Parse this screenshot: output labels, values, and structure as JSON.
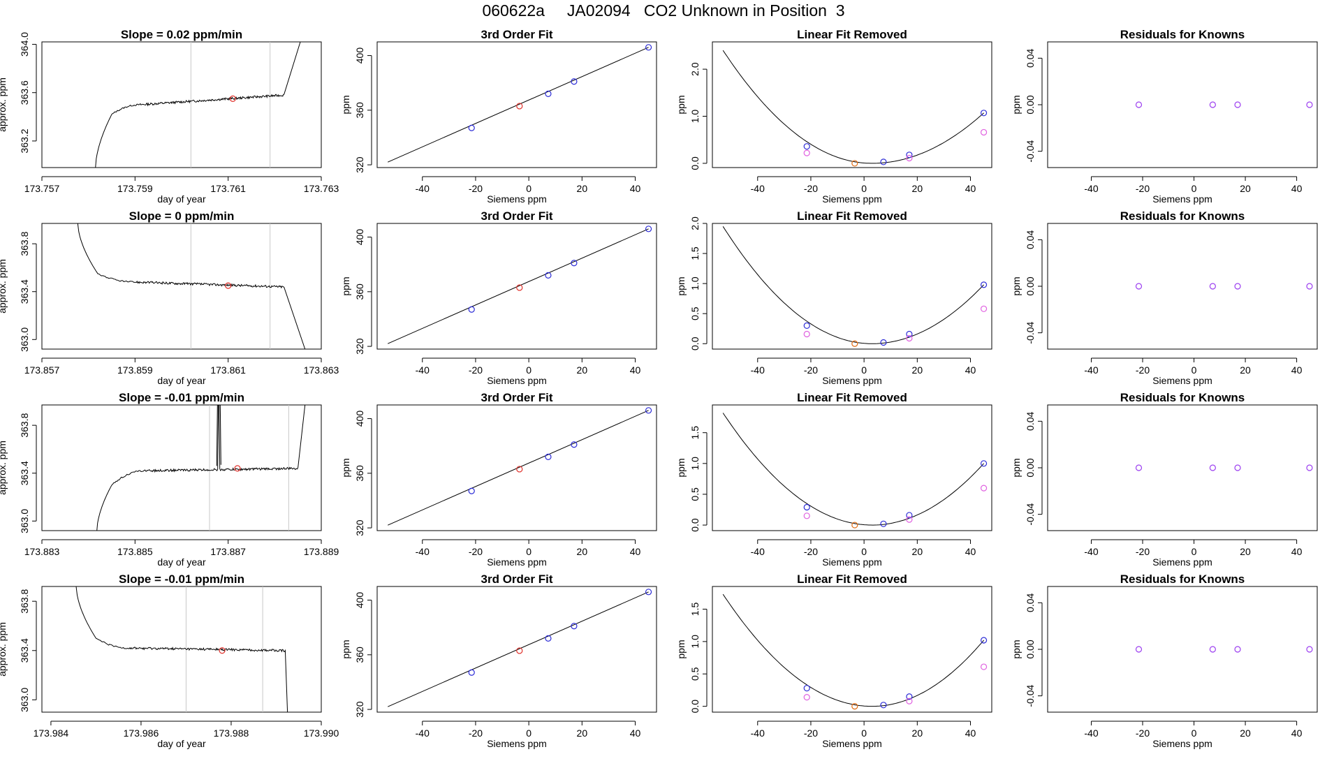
{
  "page_title": "060622a     JA02094   CO2 Unknown in Position  3",
  "colors": {
    "blue": "#2b2bd6",
    "red": "#e0302a",
    "orange": "#e06a10",
    "violet": "#9b3df0",
    "magenta": "#e060e0",
    "gray": "#c8c8c8",
    "line": "#000000"
  },
  "chart_data": [
    {
      "type": "line",
      "row": 0,
      "title": "Slope =  0.02  ppm/min",
      "xlabel": "day of year",
      "ylabel": "approx. ppm",
      "xlim": [
        173.757,
        173.763
      ],
      "ylim": [
        362.98,
        364.02
      ],
      "xticks": [
        "173.757",
        "173.759",
        "173.761",
        "173.763"
      ],
      "xtick_values": [
        173.757,
        173.759,
        173.761,
        173.763
      ],
      "yticks": [
        "363.2",
        "363.6",
        "364.0"
      ],
      "ytick_values": [
        363.2,
        363.6,
        364.0
      ],
      "vlines": [
        173.7602,
        173.7619
      ],
      "marker": {
        "x": 173.7611,
        "y": 363.55
      },
      "trace": {
        "start": [
          173.75815,
          362.98
        ],
        "knee": [
          173.7585,
          363.42
        ],
        "plateau_start": [
          173.7591,
          363.5
        ],
        "plateau_end": [
          173.7622,
          363.58
        ],
        "rise_x": 173.76255,
        "rise_y": 364.02,
        "noise": 0.012
      }
    },
    {
      "type": "line",
      "row": 1,
      "title": "Slope =  0  ppm/min",
      "xlabel": "day of year",
      "ylabel": "approx. ppm",
      "xlim": [
        173.857,
        173.863
      ],
      "ylim": [
        362.92,
        363.97
      ],
      "xticks": [
        "173.857",
        "173.859",
        "173.861",
        "173.863"
      ],
      "xtick_values": [
        173.857,
        173.859,
        173.861,
        173.863
      ],
      "yticks": [
        "363.0",
        "363.4",
        "363.8"
      ],
      "ytick_values": [
        363.0,
        363.4,
        363.8
      ],
      "vlines": [
        173.8602,
        173.8619
      ],
      "marker": {
        "x": 173.861,
        "y": 363.45
      },
      "trace": {
        "start": [
          173.85777,
          363.97
        ],
        "knee": [
          173.8582,
          363.55
        ],
        "plateau_start": [
          173.859,
          363.48
        ],
        "plateau_end": [
          173.8622,
          363.44
        ],
        "drop_x": 173.86265,
        "drop_y": 362.92,
        "noise": 0.012
      }
    },
    {
      "type": "line",
      "row": 2,
      "title": "Slope =  -0.01  ppm/min",
      "xlabel": "day of year",
      "ylabel": "approx. ppm",
      "xlim": [
        173.883,
        173.889
      ],
      "ylim": [
        362.92,
        363.97
      ],
      "xticks": [
        "173.883",
        "173.885",
        "173.887",
        "173.889"
      ],
      "xtick_values": [
        173.883,
        173.885,
        173.887,
        173.889
      ],
      "yticks": [
        "363.0",
        "363.4",
        "363.8"
      ],
      "ytick_values": [
        363.0,
        363.4,
        363.8
      ],
      "vlines": [
        173.8866,
        173.8883
      ],
      "marker": {
        "x": 173.8872,
        "y": 363.44
      },
      "spike": {
        "x": 173.8868,
        "y": 363.97
      },
      "trace": {
        "start": [
          173.88418,
          362.92
        ],
        "knee": [
          173.8845,
          363.3
        ],
        "plateau_start": [
          173.8852,
          363.42
        ],
        "plateau_end": [
          173.8885,
          363.44
        ],
        "rise_x": 173.88865,
        "rise_y": 363.97,
        "noise": 0.012
      }
    },
    {
      "type": "line",
      "row": 3,
      "title": "Slope =  -0.01  ppm/min",
      "xlabel": "day of year",
      "ylabel": "approx. ppm",
      "xlim": [
        173.9838,
        173.99
      ],
      "ylim": [
        362.9,
        363.92
      ],
      "xticks": [
        "173.984",
        "173.986",
        "173.988",
        "173.990"
      ],
      "xtick_values": [
        173.984,
        173.986,
        173.988,
        173.99
      ],
      "yticks": [
        "363.0",
        "363.4",
        "363.8"
      ],
      "ytick_values": [
        363.0,
        363.4,
        363.8
      ],
      "vlines": [
        173.987,
        173.9887
      ],
      "marker": {
        "x": 173.9878,
        "y": 363.4
      },
      "trace": {
        "start": [
          173.98456,
          363.92
        ],
        "knee": [
          173.985,
          363.5
        ],
        "plateau_start": [
          173.9857,
          363.42
        ],
        "plateau_end": [
          173.9892,
          363.4
        ],
        "drop_x": 173.98925,
        "drop_y": 362.9,
        "noise": 0.012
      }
    },
    {
      "type": "scatter",
      "row": 0,
      "title": "3rd Order Fit",
      "xlabel": "Siemens ppm",
      "ylabel": "ppm",
      "xlim": [
        -57,
        48
      ],
      "ylim": [
        318,
        410
      ],
      "xticks": [
        "-40",
        "-20",
        "0",
        "20",
        "40"
      ],
      "xtick_values": [
        -40,
        -20,
        0,
        20,
        40
      ],
      "yticks": [
        "320",
        "360",
        "400"
      ],
      "ytick_values": [
        320,
        360,
        400
      ],
      "line": {
        "x": [
          -53,
          45
        ],
        "y": [
          322,
          406
        ]
      },
      "points": [
        {
          "x": -21.5,
          "y": 347,
          "c": "blue"
        },
        {
          "x": -3.5,
          "y": 363,
          "c": "red"
        },
        {
          "x": 7.3,
          "y": 372,
          "c": "blue"
        },
        {
          "x": 17,
          "y": 381,
          "c": "blue"
        },
        {
          "x": 45,
          "y": 406,
          "c": "blue"
        }
      ]
    },
    {
      "type": "scatter",
      "row": 1,
      "title": "3rd Order Fit",
      "xlabel": "Siemens ppm",
      "ylabel": "ppm",
      "xlim": [
        -57,
        48
      ],
      "ylim": [
        318,
        410
      ],
      "xticks": [
        "-40",
        "-20",
        "0",
        "20",
        "40"
      ],
      "xtick_values": [
        -40,
        -20,
        0,
        20,
        40
      ],
      "yticks": [
        "320",
        "360",
        "400"
      ],
      "ytick_values": [
        320,
        360,
        400
      ],
      "line": {
        "x": [
          -53,
          45
        ],
        "y": [
          322,
          406
        ]
      },
      "points": [
        {
          "x": -21.5,
          "y": 347,
          "c": "blue"
        },
        {
          "x": -3.5,
          "y": 363,
          "c": "red"
        },
        {
          "x": 7.3,
          "y": 372,
          "c": "blue"
        },
        {
          "x": 17,
          "y": 381,
          "c": "blue"
        },
        {
          "x": 45,
          "y": 406,
          "c": "blue"
        }
      ]
    },
    {
      "type": "scatter",
      "row": 2,
      "title": "3rd Order Fit",
      "xlabel": "Siemens ppm",
      "ylabel": "ppm",
      "xlim": [
        -57,
        48
      ],
      "ylim": [
        318,
        410
      ],
      "xticks": [
        "-40",
        "-20",
        "0",
        "20",
        "40"
      ],
      "xtick_values": [
        -40,
        -20,
        0,
        20,
        40
      ],
      "yticks": [
        "320",
        "360",
        "400"
      ],
      "ytick_values": [
        320,
        360,
        400
      ],
      "line": {
        "x": [
          -53,
          45
        ],
        "y": [
          322,
          406
        ]
      },
      "points": [
        {
          "x": -21.5,
          "y": 347,
          "c": "blue"
        },
        {
          "x": -3.5,
          "y": 363,
          "c": "red"
        },
        {
          "x": 7.3,
          "y": 372,
          "c": "blue"
        },
        {
          "x": 17,
          "y": 381,
          "c": "blue"
        },
        {
          "x": 45,
          "y": 406,
          "c": "blue"
        }
      ]
    },
    {
      "type": "scatter",
      "row": 3,
      "title": "3rd Order Fit",
      "xlabel": "Siemens ppm",
      "ylabel": "ppm",
      "xlim": [
        -57,
        48
      ],
      "ylim": [
        318,
        410
      ],
      "xticks": [
        "-40",
        "-20",
        "0",
        "20",
        "40"
      ],
      "xtick_values": [
        -40,
        -20,
        0,
        20,
        40
      ],
      "yticks": [
        "320",
        "360",
        "400"
      ],
      "ytick_values": [
        320,
        360,
        400
      ],
      "line": {
        "x": [
          -53,
          45
        ],
        "y": [
          322,
          406
        ]
      },
      "points": [
        {
          "x": -21.5,
          "y": 347,
          "c": "blue"
        },
        {
          "x": -3.5,
          "y": 363,
          "c": "red"
        },
        {
          "x": 7.3,
          "y": 372,
          "c": "blue"
        },
        {
          "x": 17,
          "y": 381,
          "c": "blue"
        },
        {
          "x": 45,
          "y": 406,
          "c": "blue"
        }
      ]
    },
    {
      "type": "scatter",
      "row": 0,
      "title": "Linear Fit Removed",
      "xlabel": "Siemens ppm",
      "ylabel": "ppm",
      "xlim": [
        -57,
        48
      ],
      "ylim": [
        -0.09,
        2.58
      ],
      "xticks": [
        "-40",
        "-20",
        "0",
        "20",
        "40"
      ],
      "xtick_values": [
        -40,
        -20,
        0,
        20,
        40
      ],
      "yticks": [
        "0.0",
        "1.0",
        "2.0"
      ],
      "ytick_values": [
        0,
        1,
        2
      ],
      "curve": {
        "vertex": 3.0,
        "x_start": -53,
        "y_start": 2.4,
        "x_end": 45,
        "y_end": 1.07
      },
      "points": [
        {
          "x": -21.5,
          "y": 0.36,
          "c": "blue"
        },
        {
          "x": -21.5,
          "y": 0.22,
          "c": "magenta"
        },
        {
          "x": -3.5,
          "y": 0.0,
          "c": "orange"
        },
        {
          "x": 7.3,
          "y": 0.03,
          "c": "blue"
        },
        {
          "x": 17,
          "y": 0.18,
          "c": "blue"
        },
        {
          "x": 17,
          "y": 0.11,
          "c": "magenta"
        },
        {
          "x": 45,
          "y": 1.07,
          "c": "blue"
        },
        {
          "x": 45,
          "y": 0.66,
          "c": "magenta"
        }
      ]
    },
    {
      "type": "scatter",
      "row": 1,
      "title": "Linear Fit Removed",
      "xlabel": "Siemens ppm",
      "ylabel": "ppm",
      "xlim": [
        -57,
        48
      ],
      "ylim": [
        -0.09,
        2.0
      ],
      "xticks": [
        "-40",
        "-20",
        "0",
        "20",
        "40"
      ],
      "xtick_values": [
        -40,
        -20,
        0,
        20,
        40
      ],
      "yticks": [
        "0.0",
        "0.5",
        "1.0",
        "1.5",
        "2.0"
      ],
      "ytick_values": [
        0,
        0.5,
        1,
        1.5,
        2
      ],
      "curve": {
        "vertex": 3.0,
        "x_start": -53,
        "y_start": 1.95,
        "x_end": 45,
        "y_end": 0.98
      },
      "points": [
        {
          "x": -21.5,
          "y": 0.3,
          "c": "blue"
        },
        {
          "x": -21.5,
          "y": 0.16,
          "c": "magenta"
        },
        {
          "x": -3.5,
          "y": 0.0,
          "c": "orange"
        },
        {
          "x": 7.3,
          "y": 0.02,
          "c": "blue"
        },
        {
          "x": 17,
          "y": 0.16,
          "c": "blue"
        },
        {
          "x": 17,
          "y": 0.09,
          "c": "magenta"
        },
        {
          "x": 45,
          "y": 0.98,
          "c": "blue"
        },
        {
          "x": 45,
          "y": 0.58,
          "c": "magenta"
        }
      ]
    },
    {
      "type": "scatter",
      "row": 2,
      "title": "Linear Fit Removed",
      "xlabel": "Siemens ppm",
      "ylabel": "ppm",
      "xlim": [
        -57,
        48
      ],
      "ylim": [
        -0.09,
        1.95
      ],
      "xticks": [
        "-40",
        "-20",
        "0",
        "20",
        "40"
      ],
      "xtick_values": [
        -40,
        -20,
        0,
        20,
        40
      ],
      "yticks": [
        "0.0",
        "0.5",
        "1.0",
        "1.5"
      ],
      "ytick_values": [
        0,
        0.5,
        1,
        1.5
      ],
      "curve": {
        "vertex": 3.0,
        "x_start": -53,
        "y_start": 1.82,
        "x_end": 45,
        "y_end": 1.0
      },
      "points": [
        {
          "x": -21.5,
          "y": 0.29,
          "c": "blue"
        },
        {
          "x": -21.5,
          "y": 0.15,
          "c": "magenta"
        },
        {
          "x": -3.5,
          "y": 0.0,
          "c": "orange"
        },
        {
          "x": 7.3,
          "y": 0.02,
          "c": "blue"
        },
        {
          "x": 17,
          "y": 0.16,
          "c": "blue"
        },
        {
          "x": 17,
          "y": 0.09,
          "c": "magenta"
        },
        {
          "x": 45,
          "y": 1.0,
          "c": "blue"
        },
        {
          "x": 45,
          "y": 0.6,
          "c": "magenta"
        }
      ]
    },
    {
      "type": "scatter",
      "row": 3,
      "title": "Linear Fit Removed",
      "xlabel": "Siemens ppm",
      "ylabel": "ppm",
      "xlim": [
        -57,
        48
      ],
      "ylim": [
        -0.09,
        1.85
      ],
      "xticks": [
        "-40",
        "-20",
        "0",
        "20",
        "40"
      ],
      "xtick_values": [
        -40,
        -20,
        0,
        20,
        40
      ],
      "yticks": [
        "0.0",
        "0.5",
        "1.0",
        "1.5"
      ],
      "ytick_values": [
        0,
        0.5,
        1,
        1.5
      ],
      "curve": {
        "vertex": 3.0,
        "x_start": -53,
        "y_start": 1.73,
        "x_end": 45,
        "y_end": 1.02
      },
      "points": [
        {
          "x": -21.5,
          "y": 0.28,
          "c": "blue"
        },
        {
          "x": -21.5,
          "y": 0.14,
          "c": "magenta"
        },
        {
          "x": -3.5,
          "y": 0.0,
          "c": "orange"
        },
        {
          "x": 7.3,
          "y": 0.02,
          "c": "blue"
        },
        {
          "x": 17,
          "y": 0.15,
          "c": "blue"
        },
        {
          "x": 17,
          "y": 0.08,
          "c": "magenta"
        },
        {
          "x": 45,
          "y": 1.02,
          "c": "blue"
        },
        {
          "x": 45,
          "y": 0.61,
          "c": "magenta"
        }
      ]
    },
    {
      "type": "scatter",
      "row": 0,
      "title": "Residuals for Knowns",
      "xlabel": "Siemens ppm",
      "ylabel": "ppm",
      "xlim": [
        -57,
        48
      ],
      "ylim": [
        -0.054,
        0.054
      ],
      "xticks": [
        "-40",
        "-20",
        "0",
        "20",
        "40"
      ],
      "xtick_values": [
        -40,
        -20,
        0,
        20,
        40
      ],
      "yticks": [
        "-0.04",
        "0.00",
        "0.04"
      ],
      "ytick_values": [
        -0.04,
        0,
        0.04
      ],
      "points": [
        {
          "x": -21.5,
          "y": 0,
          "c": "violet"
        },
        {
          "x": 7.3,
          "y": 0,
          "c": "violet"
        },
        {
          "x": 17,
          "y": 0,
          "c": "violet"
        },
        {
          "x": 45,
          "y": 0,
          "c": "violet"
        }
      ]
    },
    {
      "type": "scatter",
      "row": 1,
      "title": "Residuals for Knowns",
      "xlabel": "Siemens ppm",
      "ylabel": "ppm",
      "xlim": [
        -57,
        48
      ],
      "ylim": [
        -0.054,
        0.054
      ],
      "xticks": [
        "-40",
        "-20",
        "0",
        "20",
        "40"
      ],
      "xtick_values": [
        -40,
        -20,
        0,
        20,
        40
      ],
      "yticks": [
        "-0.04",
        "0.00",
        "0.04"
      ],
      "ytick_values": [
        -0.04,
        0,
        0.04
      ],
      "points": [
        {
          "x": -21.5,
          "y": 0,
          "c": "violet"
        },
        {
          "x": 7.3,
          "y": 0,
          "c": "violet"
        },
        {
          "x": 17,
          "y": 0,
          "c": "violet"
        },
        {
          "x": 45,
          "y": 0,
          "c": "violet"
        }
      ]
    },
    {
      "type": "scatter",
      "row": 2,
      "title": "Residuals for Knowns",
      "xlabel": "Siemens ppm",
      "ylabel": "ppm",
      "xlim": [
        -57,
        48
      ],
      "ylim": [
        -0.054,
        0.054
      ],
      "xticks": [
        "-40",
        "-20",
        "0",
        "20",
        "40"
      ],
      "xtick_values": [
        -40,
        -20,
        0,
        20,
        40
      ],
      "yticks": [
        "-0.04",
        "0.00",
        "0.04"
      ],
      "ytick_values": [
        -0.04,
        0,
        0.04
      ],
      "points": [
        {
          "x": -21.5,
          "y": 0,
          "c": "violet"
        },
        {
          "x": 7.3,
          "y": 0,
          "c": "violet"
        },
        {
          "x": 17,
          "y": 0,
          "c": "violet"
        },
        {
          "x": 45,
          "y": 0,
          "c": "violet"
        }
      ]
    },
    {
      "type": "scatter",
      "row": 3,
      "title": "Residuals for Knowns",
      "xlabel": "Siemens ppm",
      "ylabel": "ppm",
      "xlim": [
        -57,
        48
      ],
      "ylim": [
        -0.054,
        0.054
      ],
      "xticks": [
        "-40",
        "-20",
        "0",
        "20",
        "40"
      ],
      "xtick_values": [
        -40,
        -20,
        0,
        20,
        40
      ],
      "yticks": [
        "-0.04",
        "0.00",
        "0.04"
      ],
      "ytick_values": [
        -0.04,
        0,
        0.04
      ],
      "points": [
        {
          "x": -21.5,
          "y": 0,
          "c": "violet"
        },
        {
          "x": 7.3,
          "y": 0,
          "c": "violet"
        },
        {
          "x": 17,
          "y": 0,
          "c": "violet"
        },
        {
          "x": 45,
          "y": 0,
          "c": "violet"
        }
      ]
    }
  ]
}
